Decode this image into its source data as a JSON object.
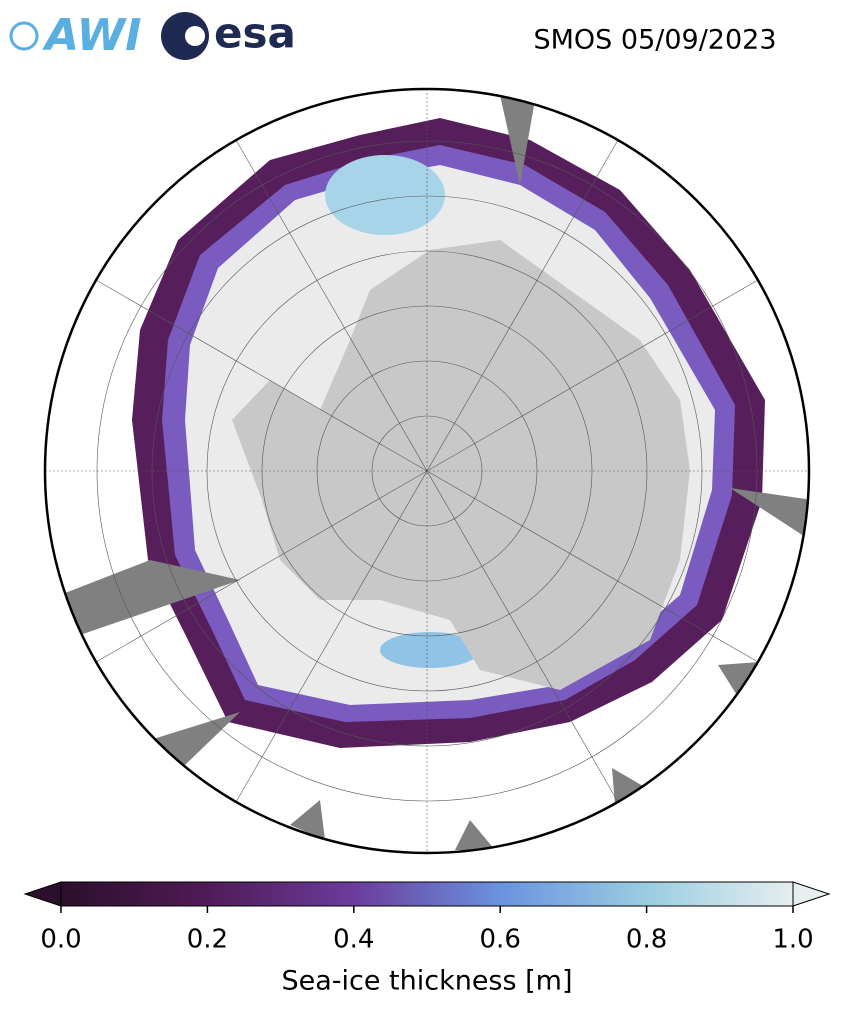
{
  "header": {
    "logos": [
      "AWI",
      "esa"
    ],
    "title": "SMOS 05/09/2023"
  },
  "colorbar": {
    "label": "Sea-ice thickness [m]",
    "lim": [
      0,
      1
    ],
    "ticks": [
      {
        "value": 0,
        "label": "0.0"
      },
      0.2,
      0.4,
      0.6,
      0.8,
      {
        "value": 1,
        "label": "1.0"
      }
    ]
  }
}
